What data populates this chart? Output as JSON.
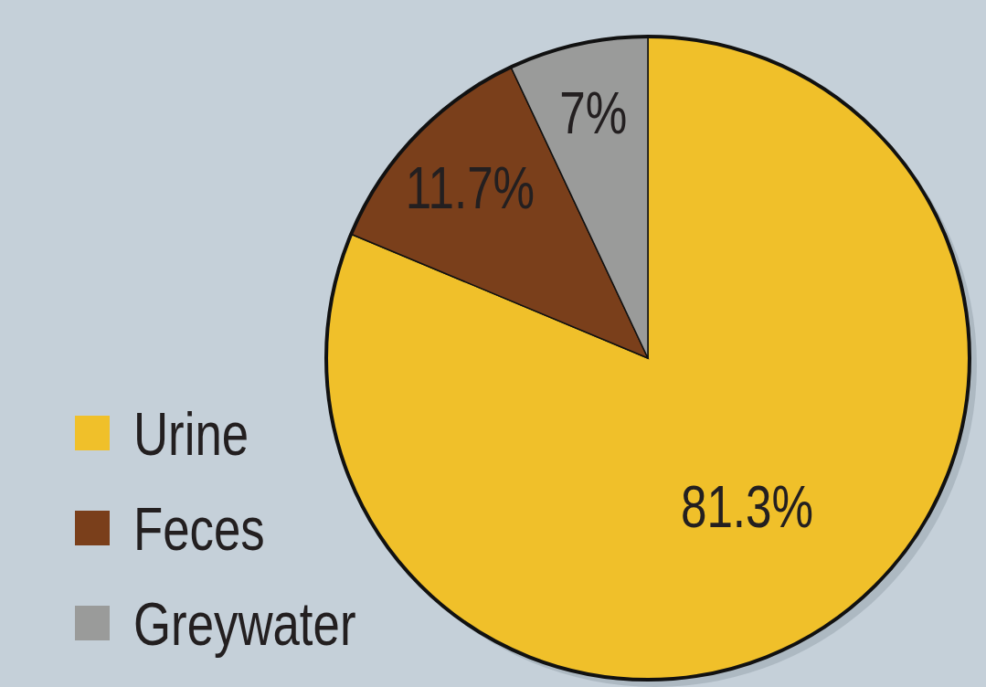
{
  "chart_data": {
    "type": "pie",
    "categories": [
      "Urine",
      "Feces",
      "Greywater"
    ],
    "values": [
      81.3,
      11.7,
      7
    ],
    "colors": [
      "#f0c02a",
      "#7a3f1b",
      "#9a9b9a"
    ],
    "value_labels": [
      "81.3%",
      "11.7%",
      "7%"
    ],
    "legend": "bottom left"
  }
}
